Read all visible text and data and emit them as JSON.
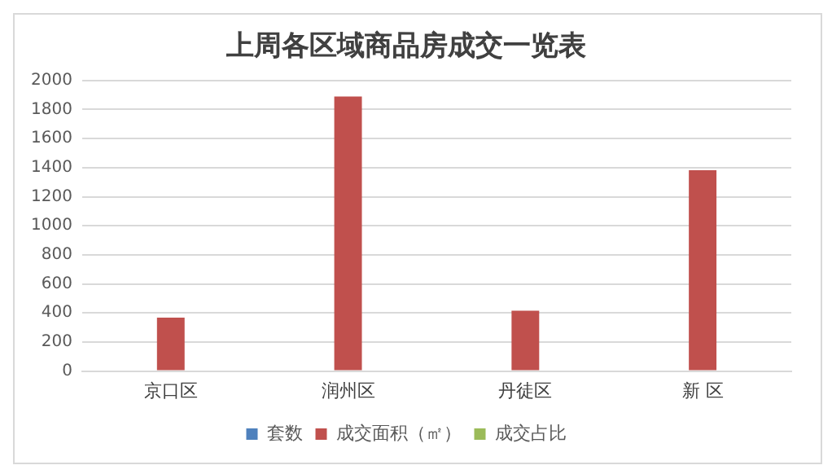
{
  "chart_data": {
    "type": "bar",
    "title": "上周各区域商品房成交一览表",
    "categories": [
      "京口区",
      "润州区",
      "丹徒区",
      "新 区"
    ],
    "series": [
      {
        "name": "套数",
        "color": "#4f81bd",
        "values": [
          null,
          null,
          null,
          null
        ]
      },
      {
        "name": "成交面积（㎡）",
        "color": "#c0504d",
        "values": [
          368,
          1889,
          415,
          1382
        ]
      },
      {
        "name": "成交占比",
        "color": "#9bbb59",
        "values": [
          null,
          null,
          null,
          null
        ]
      }
    ],
    "ylim": [
      0,
      2000
    ],
    "yticks": [
      0,
      200,
      400,
      600,
      800,
      1000,
      1200,
      1400,
      1600,
      1800,
      2000
    ],
    "grid": "y",
    "legend": "bottom"
  }
}
